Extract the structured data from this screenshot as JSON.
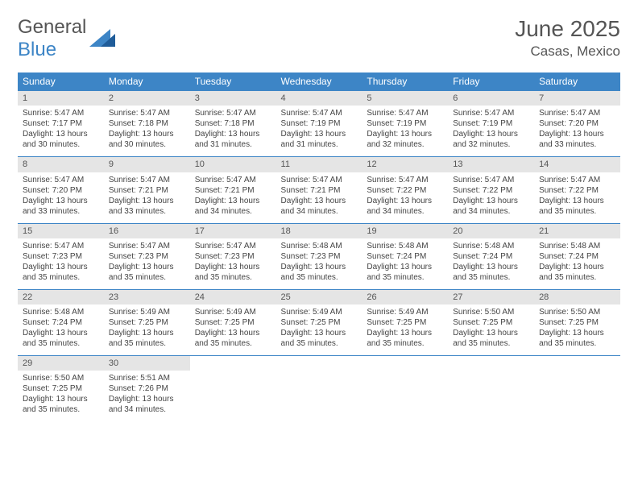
{
  "colors": {
    "header_bg": "#3d85c6",
    "daynum_bg": "#e5e5e5",
    "border": "#3d85c6",
    "text": "#444444"
  },
  "logo": {
    "part1": "General",
    "part2": "Blue"
  },
  "title": "June 2025",
  "location": "Casas, Mexico",
  "weekdays": [
    "Sunday",
    "Monday",
    "Tuesday",
    "Wednesday",
    "Thursday",
    "Friday",
    "Saturday"
  ],
  "weeks": [
    [
      {
        "day": "1",
        "lines": [
          "Sunrise: 5:47 AM",
          "Sunset: 7:17 PM",
          "Daylight: 13 hours and 30 minutes."
        ]
      },
      {
        "day": "2",
        "lines": [
          "Sunrise: 5:47 AM",
          "Sunset: 7:18 PM",
          "Daylight: 13 hours and 30 minutes."
        ]
      },
      {
        "day": "3",
        "lines": [
          "Sunrise: 5:47 AM",
          "Sunset: 7:18 PM",
          "Daylight: 13 hours and 31 minutes."
        ]
      },
      {
        "day": "4",
        "lines": [
          "Sunrise: 5:47 AM",
          "Sunset: 7:19 PM",
          "Daylight: 13 hours and 31 minutes."
        ]
      },
      {
        "day": "5",
        "lines": [
          "Sunrise: 5:47 AM",
          "Sunset: 7:19 PM",
          "Daylight: 13 hours and 32 minutes."
        ]
      },
      {
        "day": "6",
        "lines": [
          "Sunrise: 5:47 AM",
          "Sunset: 7:19 PM",
          "Daylight: 13 hours and 32 minutes."
        ]
      },
      {
        "day": "7",
        "lines": [
          "Sunrise: 5:47 AM",
          "Sunset: 7:20 PM",
          "Daylight: 13 hours and 33 minutes."
        ]
      }
    ],
    [
      {
        "day": "8",
        "lines": [
          "Sunrise: 5:47 AM",
          "Sunset: 7:20 PM",
          "Daylight: 13 hours and 33 minutes."
        ]
      },
      {
        "day": "9",
        "lines": [
          "Sunrise: 5:47 AM",
          "Sunset: 7:21 PM",
          "Daylight: 13 hours and 33 minutes."
        ]
      },
      {
        "day": "10",
        "lines": [
          "Sunrise: 5:47 AM",
          "Sunset: 7:21 PM",
          "Daylight: 13 hours and 34 minutes."
        ]
      },
      {
        "day": "11",
        "lines": [
          "Sunrise: 5:47 AM",
          "Sunset: 7:21 PM",
          "Daylight: 13 hours and 34 minutes."
        ]
      },
      {
        "day": "12",
        "lines": [
          "Sunrise: 5:47 AM",
          "Sunset: 7:22 PM",
          "Daylight: 13 hours and 34 minutes."
        ]
      },
      {
        "day": "13",
        "lines": [
          "Sunrise: 5:47 AM",
          "Sunset: 7:22 PM",
          "Daylight: 13 hours and 34 minutes."
        ]
      },
      {
        "day": "14",
        "lines": [
          "Sunrise: 5:47 AM",
          "Sunset: 7:22 PM",
          "Daylight: 13 hours and 35 minutes."
        ]
      }
    ],
    [
      {
        "day": "15",
        "lines": [
          "Sunrise: 5:47 AM",
          "Sunset: 7:23 PM",
          "Daylight: 13 hours and 35 minutes."
        ]
      },
      {
        "day": "16",
        "lines": [
          "Sunrise: 5:47 AM",
          "Sunset: 7:23 PM",
          "Daylight: 13 hours and 35 minutes."
        ]
      },
      {
        "day": "17",
        "lines": [
          "Sunrise: 5:47 AM",
          "Sunset: 7:23 PM",
          "Daylight: 13 hours and 35 minutes."
        ]
      },
      {
        "day": "18",
        "lines": [
          "Sunrise: 5:48 AM",
          "Sunset: 7:23 PM",
          "Daylight: 13 hours and 35 minutes."
        ]
      },
      {
        "day": "19",
        "lines": [
          "Sunrise: 5:48 AM",
          "Sunset: 7:24 PM",
          "Daylight: 13 hours and 35 minutes."
        ]
      },
      {
        "day": "20",
        "lines": [
          "Sunrise: 5:48 AM",
          "Sunset: 7:24 PM",
          "Daylight: 13 hours and 35 minutes."
        ]
      },
      {
        "day": "21",
        "lines": [
          "Sunrise: 5:48 AM",
          "Sunset: 7:24 PM",
          "Daylight: 13 hours and 35 minutes."
        ]
      }
    ],
    [
      {
        "day": "22",
        "lines": [
          "Sunrise: 5:48 AM",
          "Sunset: 7:24 PM",
          "Daylight: 13 hours and 35 minutes."
        ]
      },
      {
        "day": "23",
        "lines": [
          "Sunrise: 5:49 AM",
          "Sunset: 7:25 PM",
          "Daylight: 13 hours and 35 minutes."
        ]
      },
      {
        "day": "24",
        "lines": [
          "Sunrise: 5:49 AM",
          "Sunset: 7:25 PM",
          "Daylight: 13 hours and 35 minutes."
        ]
      },
      {
        "day": "25",
        "lines": [
          "Sunrise: 5:49 AM",
          "Sunset: 7:25 PM",
          "Daylight: 13 hours and 35 minutes."
        ]
      },
      {
        "day": "26",
        "lines": [
          "Sunrise: 5:49 AM",
          "Sunset: 7:25 PM",
          "Daylight: 13 hours and 35 minutes."
        ]
      },
      {
        "day": "27",
        "lines": [
          "Sunrise: 5:50 AM",
          "Sunset: 7:25 PM",
          "Daylight: 13 hours and 35 minutes."
        ]
      },
      {
        "day": "28",
        "lines": [
          "Sunrise: 5:50 AM",
          "Sunset: 7:25 PM",
          "Daylight: 13 hours and 35 minutes."
        ]
      }
    ],
    [
      {
        "day": "29",
        "lines": [
          "Sunrise: 5:50 AM",
          "Sunset: 7:25 PM",
          "Daylight: 13 hours and 35 minutes."
        ]
      },
      {
        "day": "30",
        "lines": [
          "Sunrise: 5:51 AM",
          "Sunset: 7:26 PM",
          "Daylight: 13 hours and 34 minutes."
        ]
      },
      null,
      null,
      null,
      null,
      null
    ]
  ]
}
